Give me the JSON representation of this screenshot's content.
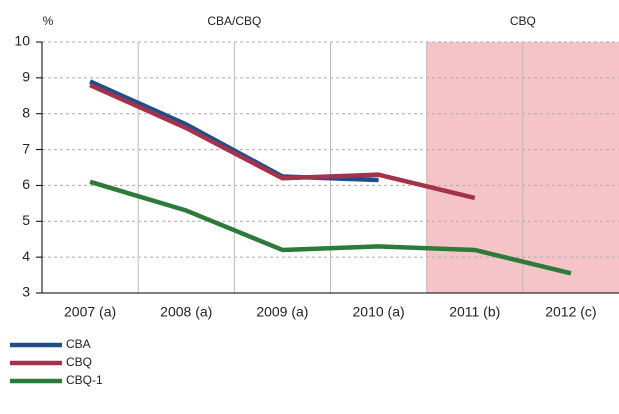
{
  "chart_data": {
    "type": "line",
    "y_label": "%",
    "categories": [
      "2007 (a)",
      "2008 (a)",
      "2009 (a)",
      "2010 (a)",
      "2011 (b)",
      "2012 (c)"
    ],
    "series": [
      {
        "name": "CBA",
        "color": "#1f4e8c",
        "values": [
          8.9,
          7.7,
          6.25,
          6.15,
          null,
          null
        ]
      },
      {
        "name": "CBQ",
        "color": "#a3324a",
        "values": [
          8.8,
          7.6,
          6.2,
          6.3,
          5.65,
          null
        ]
      },
      {
        "name": "CBQ-1",
        "color": "#2e7a3a",
        "values": [
          6.1,
          5.3,
          4.2,
          4.3,
          4.2,
          3.55
        ]
      }
    ],
    "annotations": [
      {
        "text": "CBA/CBQ",
        "from": "2007 (a)",
        "to": "2010 (a)"
      },
      {
        "text": "CBQ",
        "from": "2011 (b)",
        "to": "2012 (c)",
        "color": "#f4c4c9"
      }
    ],
    "ylim": [
      3,
      10
    ],
    "yticks": [
      3,
      4,
      5,
      6,
      7,
      8,
      9,
      10
    ],
    "grid": true
  }
}
